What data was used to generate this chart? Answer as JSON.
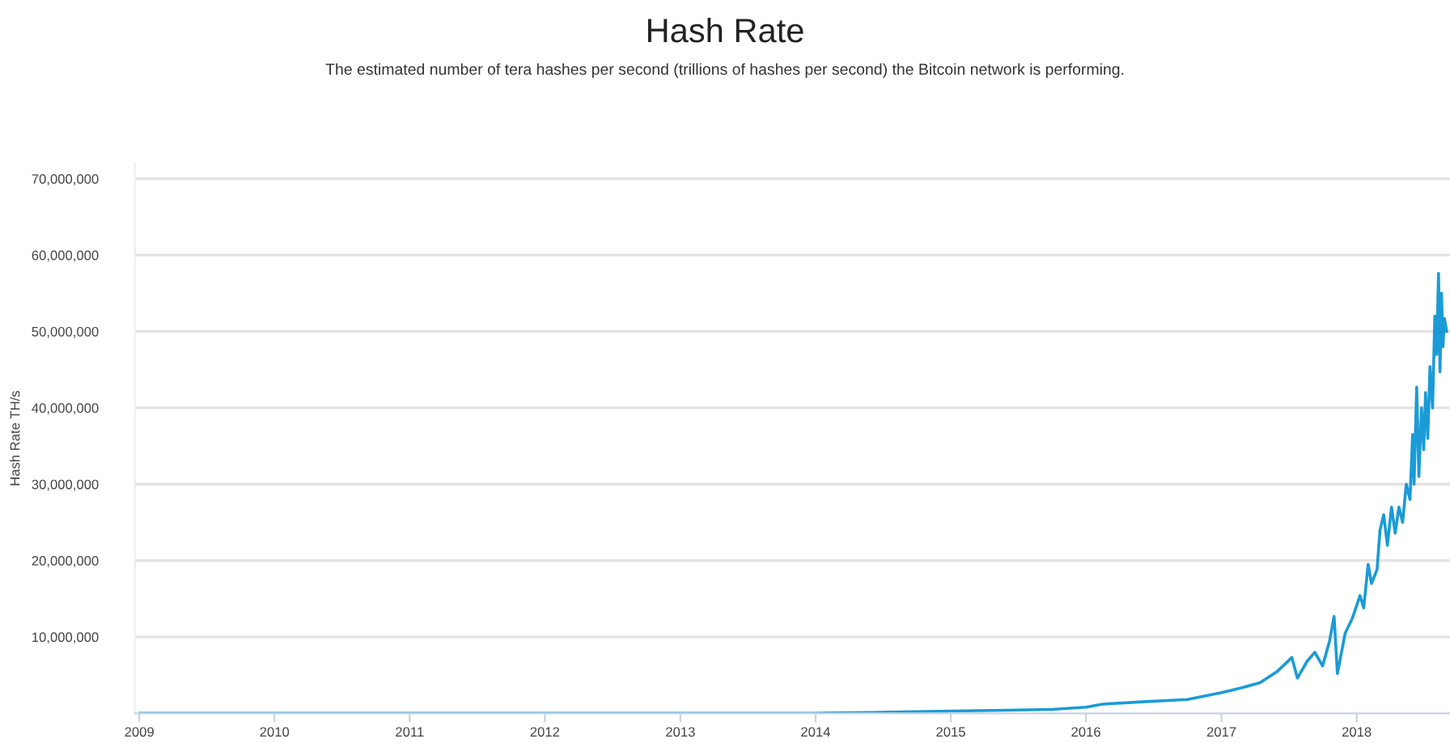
{
  "chart_data": {
    "type": "line",
    "title": "Hash Rate",
    "subtitle": "The estimated number of tera hashes per second (trillions of hashes per second) the Bitcoin network is performing.",
    "ylabel": "Hash Rate TH/s",
    "x": [
      "2009-01-03",
      "2010-01-01",
      "2011-01-01",
      "2012-01-01",
      "2013-01-01",
      "2013-07-01",
      "2014-01-01",
      "2014-06-01",
      "2015-01-01",
      "2015-06-01",
      "2015-10-01",
      "2016-01-01",
      "2016-02-15",
      "2016-06-01",
      "2016-10-01",
      "2017-01-01",
      "2017-03-01",
      "2017-04-15",
      "2017-06-01",
      "2017-07-10",
      "2017-07-25",
      "2017-08-20",
      "2017-09-10",
      "2017-10-01",
      "2017-10-20",
      "2017-11-01",
      "2017-11-10",
      "2017-12-01",
      "2017-12-20",
      "2018-01-10",
      "2018-01-20",
      "2018-02-01",
      "2018-02-10",
      "2018-02-25",
      "2018-03-05",
      "2018-03-15",
      "2018-03-25",
      "2018-04-05",
      "2018-04-15",
      "2018-04-25",
      "2018-05-05",
      "2018-05-15",
      "2018-05-25",
      "2018-06-01",
      "2018-06-05",
      "2018-06-12",
      "2018-06-18",
      "2018-06-25",
      "2018-07-01",
      "2018-07-06",
      "2018-07-12",
      "2018-07-18",
      "2018-07-25",
      "2018-07-31",
      "2018-08-05",
      "2018-08-10",
      "2018-08-14",
      "2018-08-18",
      "2018-08-22",
      "2018-08-26",
      "2018-09-01"
    ],
    "series": [
      {
        "color": "#1a9bd7",
        "values": [
          0,
          0,
          0,
          0,
          0,
          0,
          0,
          100000,
          300000,
          400000,
          500000,
          800000,
          1200000,
          1500000,
          1800000,
          2700000,
          3400000,
          4000000,
          5500000,
          7300000,
          4600000,
          6800000,
          8000000,
          6200000,
          9500000,
          12700000,
          5200000,
          10500000,
          12400000,
          15400000,
          13800000,
          19500000,
          17000000,
          18800000,
          24000000,
          26000000,
          22000000,
          27000000,
          23600000,
          27000000,
          25000000,
          30000000,
          28000000,
          36500000,
          30000000,
          42700000,
          31000000,
          40000000,
          34500000,
          42000000,
          36000000,
          45400000,
          40000000,
          52000000,
          47000000,
          57600000,
          44700000,
          55000000,
          48000000,
          51700000,
          50000000
        ]
      }
    ],
    "xlim": [
      "2008-12-20",
      "2018-09-10"
    ],
    "xticks": [
      {
        "value": "2009-01-01",
        "label": "2009"
      },
      {
        "value": "2010-01-01",
        "label": "2010"
      },
      {
        "value": "2011-01-01",
        "label": "2011"
      },
      {
        "value": "2012-01-01",
        "label": "2012"
      },
      {
        "value": "2013-01-01",
        "label": "2013"
      },
      {
        "value": "2014-01-01",
        "label": "2014"
      },
      {
        "value": "2015-01-01",
        "label": "2015"
      },
      {
        "value": "2016-01-01",
        "label": "2016"
      },
      {
        "value": "2017-01-01",
        "label": "2017"
      },
      {
        "value": "2018-01-01",
        "label": "2018"
      }
    ],
    "ylim": [
      0,
      72000000
    ],
    "yticks": [
      {
        "value": 10000000,
        "label": "10,000,000"
      },
      {
        "value": 20000000,
        "label": "20,000,000"
      },
      {
        "value": 30000000,
        "label": "30,000,000"
      },
      {
        "value": 40000000,
        "label": "40,000,000"
      },
      {
        "value": 50000000,
        "label": "50,000,000"
      },
      {
        "value": 60000000,
        "label": "60,000,000"
      },
      {
        "value": 70000000,
        "label": "70,000,000"
      }
    ],
    "grid": "y",
    "legend": false,
    "marker": "none",
    "line_style": "solid"
  }
}
